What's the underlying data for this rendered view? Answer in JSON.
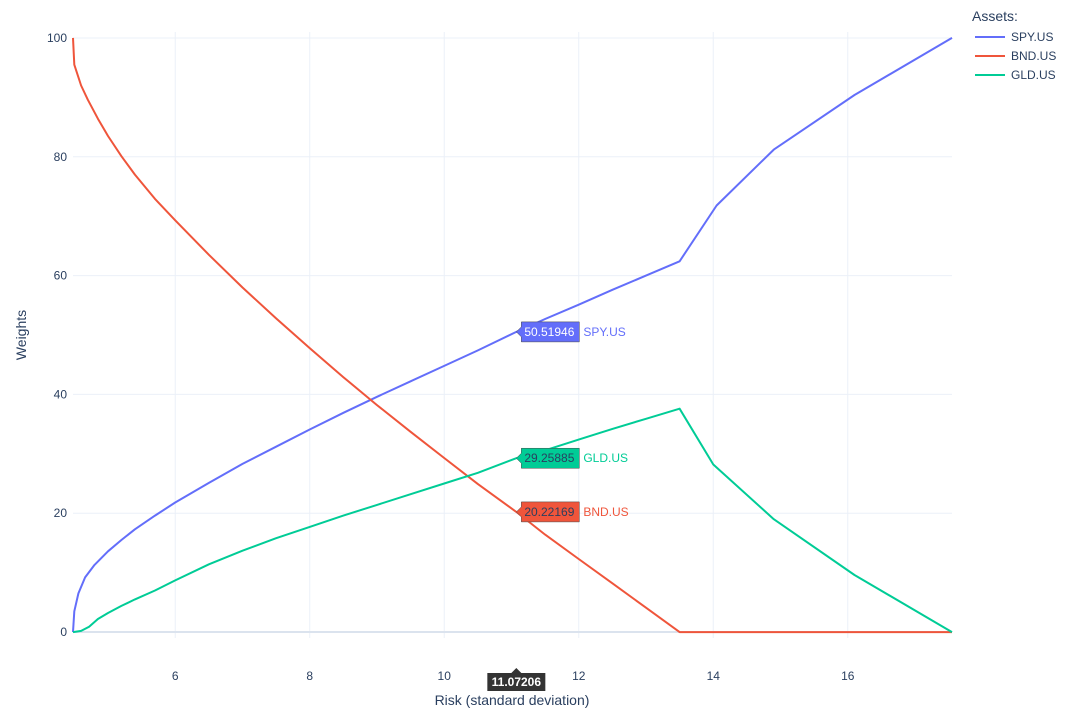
{
  "chart_data": {
    "type": "line",
    "xlabel": "Risk (standard deviation)",
    "ylabel": "Weights",
    "xlim": [
      4.48,
      17.55
    ],
    "ylim": [
      -1,
      101
    ],
    "x_ticks": [
      6,
      8,
      10,
      12,
      14,
      16
    ],
    "y_ticks": [
      0,
      20,
      40,
      60,
      80,
      100
    ],
    "grid": true,
    "legend": {
      "title": "Assets:",
      "placement": "top-right"
    },
    "hover": {
      "x_value": "11.07206",
      "labels": [
        {
          "series": "SPY.US",
          "value": "50.51946",
          "y": 50.51946
        },
        {
          "series": "GLD.US",
          "value": "29.25885",
          "y": 29.25885
        },
        {
          "series": "BND.US",
          "value": "20.22169",
          "y": 20.22169
        }
      ]
    },
    "series": [
      {
        "name": "SPY.US",
        "color": "#636efa",
        "x": [
          4.48,
          4.5,
          4.56,
          4.66,
          4.8,
          5.0,
          5.2,
          5.4,
          5.7,
          6.0,
          6.5,
          7.0,
          7.5,
          8.0,
          8.5,
          9.0,
          9.5,
          10.0,
          10.5,
          11.07206,
          11.5,
          12.0,
          12.5,
          13.0,
          13.5,
          14.05,
          14.9,
          16.1,
          17.55
        ],
        "y": [
          0,
          3.5,
          6.5,
          9.2,
          11.3,
          13.6,
          15.5,
          17.3,
          19.6,
          21.8,
          25.1,
          28.3,
          31.2,
          34.1,
          36.9,
          39.6,
          42.2,
          44.8,
          47.4,
          50.51946,
          52.7,
          55.1,
          57.6,
          60.0,
          62.4,
          71.8,
          81.2,
          90.4,
          100
        ]
      },
      {
        "name": "BND.US",
        "color": "#ef553b",
        "x": [
          4.48,
          4.5,
          4.6,
          4.7,
          4.85,
          5.0,
          5.2,
          5.4,
          5.7,
          6.0,
          6.5,
          7.0,
          7.5,
          8.0,
          8.5,
          9.0,
          9.5,
          10.0,
          10.5,
          11.07206,
          11.5,
          12.0,
          12.5,
          13.0,
          13.5,
          14.0,
          15.0,
          16.0,
          17.55
        ],
        "y": [
          100,
          95.5,
          92.0,
          89.6,
          86.4,
          83.5,
          80.1,
          77.0,
          72.9,
          69.3,
          63.5,
          58.0,
          52.8,
          47.8,
          42.9,
          38.2,
          33.7,
          29.3,
          24.9,
          20.22169,
          16.4,
          12.3,
          8.2,
          4.1,
          0,
          0,
          0,
          0,
          0
        ]
      },
      {
        "name": "GLD.US",
        "color": "#00cc96",
        "x": [
          4.48,
          4.6,
          4.72,
          4.85,
          5.0,
          5.2,
          5.4,
          5.7,
          6.0,
          6.5,
          7.0,
          7.5,
          8.0,
          8.5,
          9.0,
          9.5,
          10.0,
          10.5,
          11.07206,
          11.5,
          12.0,
          12.5,
          13.0,
          13.5,
          14.0,
          14.9,
          16.1,
          17.55
        ],
        "y": [
          0,
          0.2,
          0.9,
          2.2,
          3.2,
          4.4,
          5.5,
          7.0,
          8.7,
          11.4,
          13.7,
          15.8,
          17.7,
          19.6,
          21.4,
          23.2,
          25.0,
          26.8,
          29.25885,
          30.6,
          32.4,
          34.2,
          35.9,
          37.6,
          28.2,
          19.0,
          9.6,
          0
        ]
      }
    ]
  }
}
